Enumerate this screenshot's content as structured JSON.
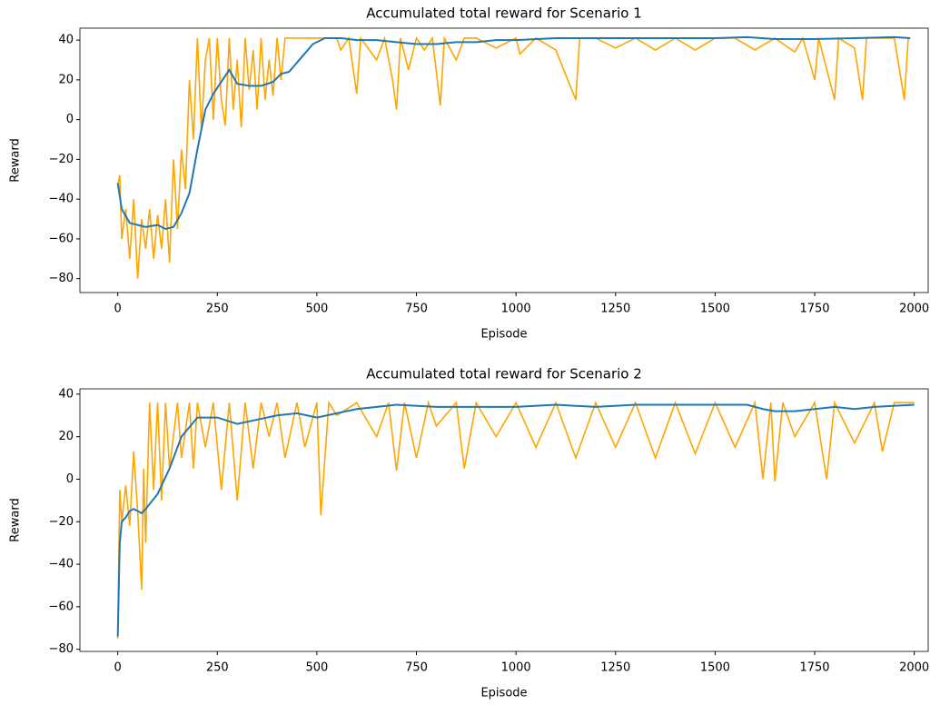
{
  "chart_data": [
    {
      "type": "line",
      "title": "Accumulated total reward for Scenario 1",
      "xlabel": "Episode",
      "ylabel": "Reward",
      "xlim": [
        -95,
        2035
      ],
      "ylim": [
        -87,
        46
      ],
      "xticks": [
        0,
        250,
        500,
        750,
        1000,
        1250,
        1500,
        1750,
        2000
      ],
      "yticks": [
        {
          "value": -80,
          "label": "−80"
        },
        {
          "value": -60,
          "label": "−60"
        },
        {
          "value": -40,
          "label": "−40"
        },
        {
          "value": -20,
          "label": "−20"
        },
        0,
        20,
        40
      ],
      "series": [
        {
          "color": "#ffa500",
          "x": [
            0,
            5,
            10,
            20,
            30,
            40,
            50,
            60,
            70,
            80,
            90,
            100,
            110,
            120,
            130,
            140,
            150,
            160,
            170,
            180,
            190,
            200,
            210,
            220,
            230,
            240,
            250,
            260,
            270,
            280,
            290,
            300,
            310,
            320,
            330,
            340,
            350,
            360,
            370,
            380,
            390,
            400,
            410,
            420,
            450,
            500,
            550,
            560,
            580,
            600,
            610,
            650,
            670,
            690,
            700,
            710,
            730,
            750,
            770,
            790,
            810,
            820,
            850,
            870,
            900,
            950,
            1000,
            1010,
            1050,
            1100,
            1150,
            1160,
            1200,
            1250,
            1300,
            1350,
            1400,
            1450,
            1500,
            1550,
            1600,
            1650,
            1700,
            1720,
            1750,
            1760,
            1800,
            1810,
            1850,
            1870,
            1880,
            1950,
            1975,
            1985
          ],
          "values": [
            -33,
            -28,
            -60,
            -45,
            -70,
            -40,
            -80,
            -50,
            -65,
            -45,
            -70,
            -48,
            -65,
            -40,
            -72,
            -20,
            -55,
            -15,
            -35,
            20,
            -10,
            41,
            -5,
            30,
            41,
            0,
            41,
            10,
            -3,
            41,
            5,
            30,
            -4,
            41,
            15,
            35,
            5,
            41,
            10,
            30,
            12,
            41,
            20,
            41,
            41,
            41,
            41,
            35,
            41,
            13,
            41,
            30,
            41,
            20,
            5,
            41,
            25,
            41,
            35,
            41,
            7,
            41,
            30,
            41,
            41,
            36,
            41,
            33,
            41,
            35,
            10,
            41,
            41,
            36,
            41,
            35,
            41,
            35,
            41,
            41,
            35,
            41,
            34,
            41,
            20,
            41,
            10,
            41,
            36,
            10,
            41,
            41,
            10,
            41
          ]
        },
        {
          "color": "#1f77b4",
          "x": [
            0,
            10,
            30,
            50,
            70,
            100,
            120,
            140,
            160,
            180,
            200,
            220,
            240,
            260,
            280,
            300,
            330,
            360,
            390,
            410,
            430,
            460,
            490,
            520,
            560,
            600,
            650,
            700,
            750,
            800,
            850,
            900,
            950,
            1000,
            1100,
            1200,
            1300,
            1400,
            1500,
            1580,
            1650,
            1750,
            1850,
            1950,
            1990
          ],
          "values": [
            -32,
            -45,
            -52,
            -53,
            -54,
            -53,
            -55,
            -54,
            -47,
            -37,
            -15,
            5,
            13,
            19,
            25,
            18,
            17,
            17,
            19,
            23,
            24,
            31,
            38,
            41,
            41,
            40,
            40,
            39,
            38,
            38,
            39,
            39,
            40,
            40,
            41,
            41,
            41,
            41,
            41,
            41.5,
            40.5,
            40.5,
            41,
            41.5,
            41
          ]
        }
      ]
    },
    {
      "type": "line",
      "title": "Accumulated total reward for Scenario 2",
      "xlabel": "Episode",
      "ylabel": "Reward",
      "xlim": [
        -95,
        2035
      ],
      "ylim": [
        -81,
        42.5
      ],
      "xticks": [
        0,
        250,
        500,
        750,
        1000,
        1250,
        1500,
        1750,
        2000
      ],
      "yticks": [
        {
          "value": -80,
          "label": "−80"
        },
        {
          "value": -60,
          "label": "−60"
        },
        {
          "value": -40,
          "label": "−40"
        },
        {
          "value": -20,
          "label": "−20"
        },
        0,
        20,
        40
      ],
      "series": [
        {
          "color": "#ffa500",
          "x": [
            0,
            5,
            10,
            20,
            30,
            40,
            50,
            60,
            65,
            70,
            80,
            90,
            100,
            110,
            120,
            130,
            150,
            160,
            180,
            190,
            200,
            220,
            240,
            260,
            280,
            300,
            320,
            340,
            360,
            380,
            400,
            420,
            450,
            470,
            500,
            510,
            530,
            550,
            600,
            650,
            680,
            700,
            720,
            750,
            780,
            800,
            850,
            870,
            900,
            950,
            1000,
            1050,
            1100,
            1150,
            1200,
            1250,
            1300,
            1350,
            1400,
            1450,
            1500,
            1550,
            1600,
            1620,
            1640,
            1650,
            1670,
            1700,
            1750,
            1780,
            1800,
            1850,
            1900,
            1920,
            1950,
            2000
          ],
          "values": [
            -75,
            -5,
            -20,
            -3,
            -22,
            13,
            -15,
            -52,
            5,
            -30,
            36,
            -5,
            36,
            -10,
            36,
            5,
            36,
            10,
            36,
            5,
            36,
            15,
            36,
            -5,
            36,
            -10,
            36,
            5,
            36,
            20,
            36,
            10,
            36,
            15,
            36,
            -17,
            36,
            30,
            36,
            20,
            36,
            4,
            36,
            10,
            36,
            25,
            36,
            5,
            36,
            20,
            36,
            15,
            36,
            10,
            36,
            15,
            36,
            10,
            36,
            12,
            36,
            15,
            36,
            0,
            36,
            -1,
            36,
            20,
            36,
            0,
            36,
            17,
            36,
            13,
            36,
            36
          ]
        },
        {
          "color": "#1f77b4",
          "x": [
            0,
            5,
            10,
            20,
            30,
            40,
            50,
            60,
            70,
            100,
            130,
            160,
            200,
            250,
            300,
            350,
            400,
            450,
            500,
            550,
            600,
            650,
            700,
            800,
            900,
            1000,
            1100,
            1200,
            1300,
            1400,
            1500,
            1580,
            1620,
            1650,
            1700,
            1750,
            1800,
            1850,
            1900,
            2000
          ],
          "values": [
            -74,
            -30,
            -20,
            -18,
            -15,
            -14,
            -15,
            -16,
            -14,
            -7,
            5,
            20,
            29,
            29,
            26,
            28,
            30,
            31,
            29,
            31,
            33,
            34,
            35,
            34,
            34,
            34,
            35,
            34,
            35,
            35,
            35,
            35,
            33,
            32,
            32,
            33,
            34,
            33,
            34,
            35
          ]
        }
      ]
    }
  ]
}
